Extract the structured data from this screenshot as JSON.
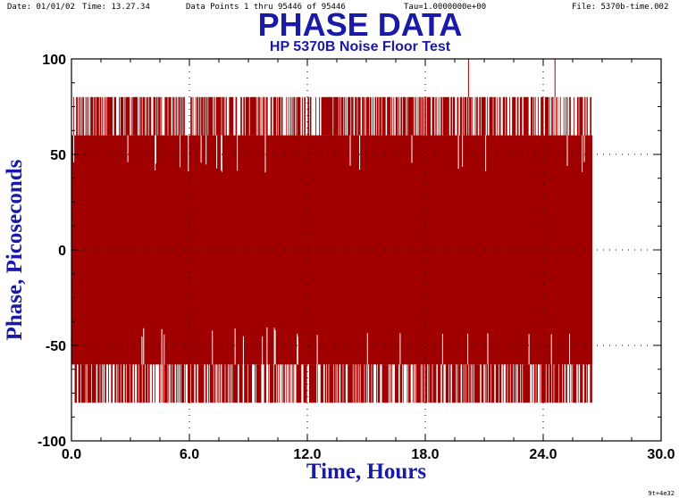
{
  "header": {
    "date": "Date: 01/01/02",
    "time": "Time: 13.27.34",
    "points": "Data Points 1 thru 95446 of 95446",
    "tau": "Tau=1.0000000e+00",
    "file": "File: 5370b-time.002"
  },
  "footer_code": "9t+4e32",
  "colors": {
    "title": "#1a1aa8",
    "data": "#a00000",
    "axis": "#000000"
  },
  "chart_data": {
    "type": "line",
    "title": "PHASE DATA",
    "subtitle": "HP 5370B Noise Floor Test",
    "xlabel": "Time,  Hours",
    "ylabel": "Phase,  Picoseconds",
    "xlim": [
      0,
      30
    ],
    "ylim": [
      -100,
      100
    ],
    "x_ticks": [
      "0.0",
      "6.0",
      "12.0",
      "18.0",
      "24.0",
      "30.0"
    ],
    "x_tick_values": [
      0,
      6,
      12,
      18,
      24,
      30
    ],
    "y_ticks": [
      "100",
      "50",
      "0",
      "-50",
      "-100"
    ],
    "y_tick_values": [
      100,
      50,
      0,
      -50,
      -100
    ],
    "grid": "dotted",
    "data_x_range": [
      0,
      26.5
    ],
    "quantization_levels": [
      -80,
      -60,
      -40,
      40,
      60,
      80,
      100
    ],
    "core_band": [
      -60,
      60
    ],
    "outer_band": [
      -80,
      80
    ],
    "peak_values": [
      {
        "x": 20.2,
        "y": 100
      },
      {
        "x": 24.6,
        "y": 100
      }
    ]
  }
}
